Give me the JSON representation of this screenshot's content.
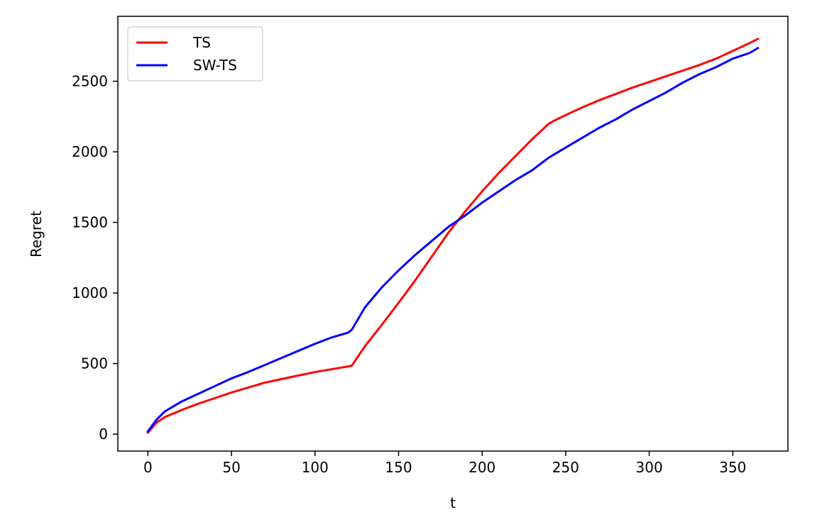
{
  "chart_data": {
    "type": "line",
    "title": "",
    "xlabel": "t",
    "ylabel": "Regret",
    "xlim": [
      -18,
      383
    ],
    "ylim": [
      -120,
      2960
    ],
    "xticks": [
      0,
      50,
      100,
      150,
      200,
      250,
      300,
      350
    ],
    "xtick_labels": [
      "0",
      "50",
      "100",
      "150",
      "200",
      "250",
      "300",
      "350"
    ],
    "yticks": [
      0,
      500,
      1000,
      1500,
      2000,
      2500
    ],
    "ytick_labels": [
      "0",
      "500",
      "1000",
      "1500",
      "2000",
      "2500"
    ],
    "grid": false,
    "legend": {
      "position": "top-left"
    },
    "series": [
      {
        "name": "TS",
        "color": "#ff0000",
        "x": [
          0,
          5,
          10,
          20,
          30,
          40,
          50,
          60,
          70,
          80,
          90,
          100,
          110,
          120,
          122,
          130,
          140,
          150,
          160,
          170,
          180,
          190,
          200,
          210,
          220,
          230,
          240,
          243,
          250,
          260,
          270,
          280,
          290,
          300,
          310,
          320,
          330,
          340,
          350,
          360,
          365
        ],
        "y": [
          10,
          80,
          120,
          170,
          215,
          255,
          295,
          330,
          365,
          390,
          415,
          440,
          460,
          480,
          485,
          625,
          775,
          930,
          1090,
          1260,
          1430,
          1580,
          1720,
          1850,
          1970,
          2090,
          2200,
          2220,
          2260,
          2315,
          2365,
          2410,
          2455,
          2495,
          2535,
          2575,
          2615,
          2660,
          2715,
          2770,
          2800
        ]
      },
      {
        "name": "SW-TS",
        "color": "#0000ff",
        "x": [
          0,
          5,
          10,
          20,
          30,
          40,
          50,
          60,
          70,
          80,
          90,
          100,
          110,
          120,
          122,
          130,
          140,
          150,
          160,
          170,
          180,
          190,
          200,
          210,
          220,
          230,
          240,
          250,
          260,
          270,
          280,
          290,
          300,
          310,
          320,
          330,
          340,
          350,
          360,
          365
        ],
        "y": [
          20,
          100,
          160,
          230,
          285,
          340,
          395,
          440,
          490,
          540,
          590,
          640,
          685,
          720,
          740,
          900,
          1040,
          1160,
          1270,
          1370,
          1470,
          1550,
          1640,
          1720,
          1800,
          1870,
          1960,
          2030,
          2100,
          2170,
          2230,
          2300,
          2360,
          2420,
          2490,
          2550,
          2600,
          2660,
          2700,
          2735
        ]
      }
    ]
  }
}
